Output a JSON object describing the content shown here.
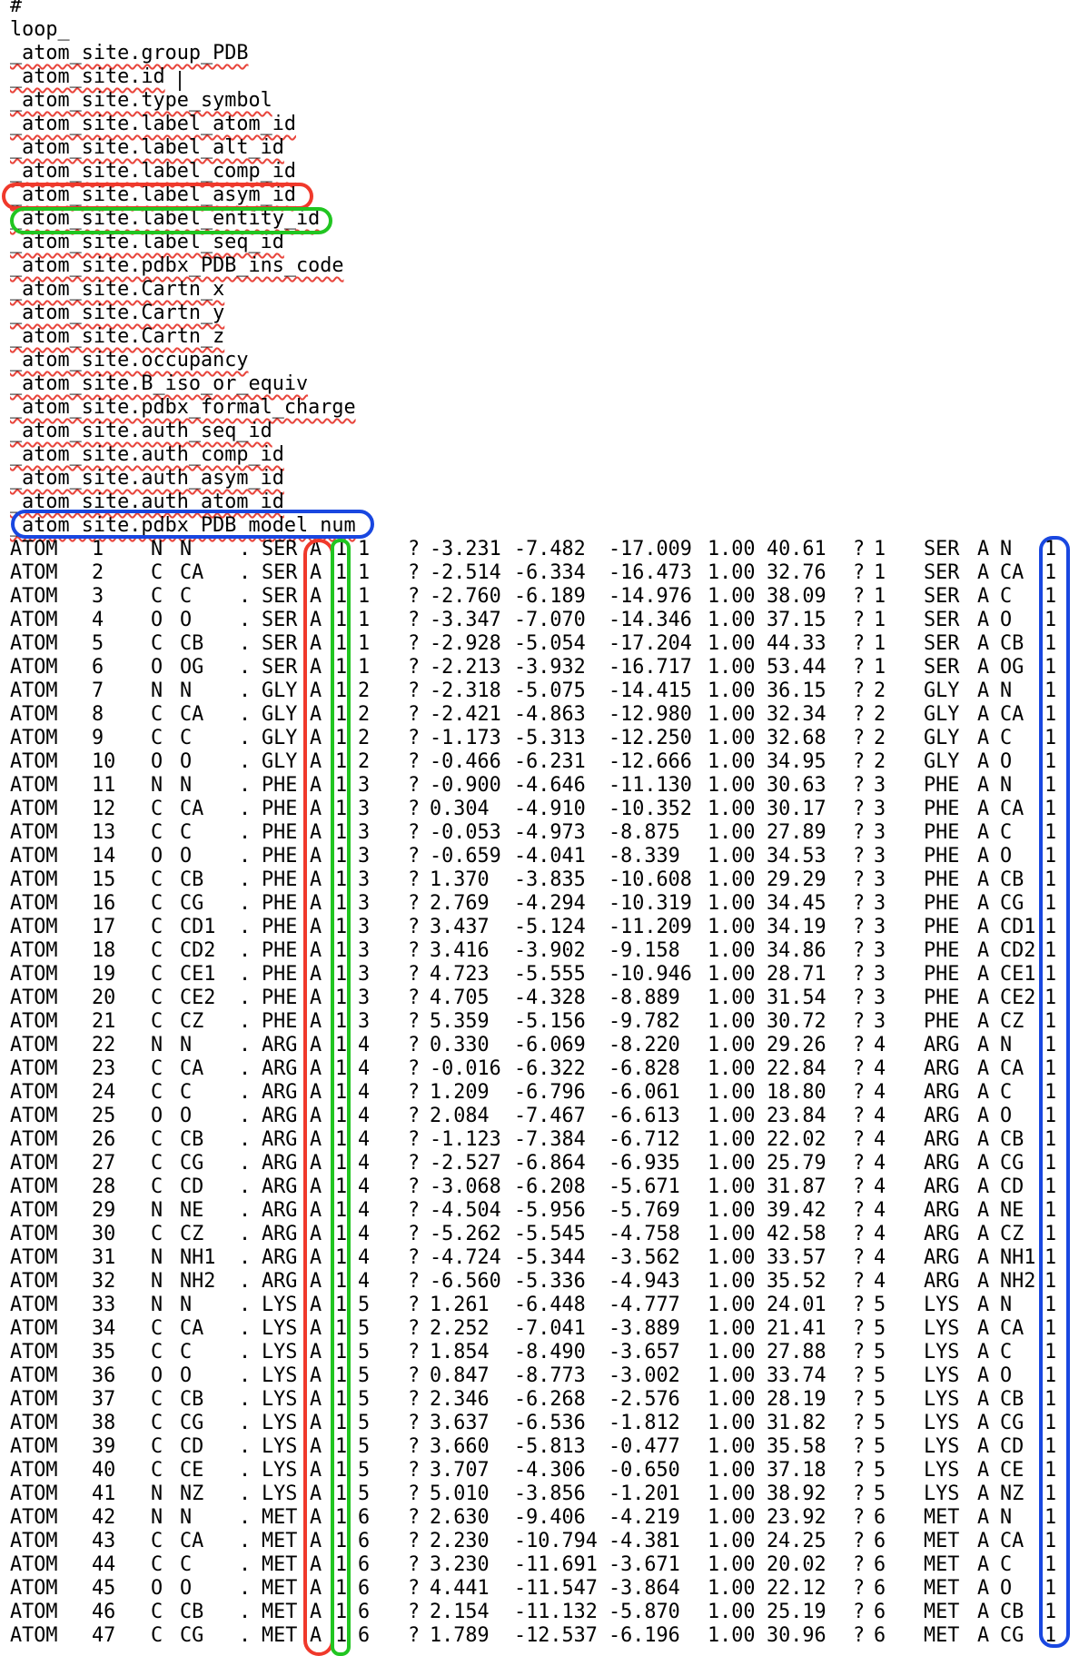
{
  "header_lines": [
    "#",
    "loop_"
  ],
  "tags": [
    "_atom_site.group_PDB",
    "_atom_site.id",
    "_atom_site.type_symbol",
    "_atom_site.label_atom_id",
    "_atom_site.label_alt_id",
    "_atom_site.label_comp_id",
    "_atom_site.label_asym_id",
    "_atom_site.label_entity_id",
    "_atom_site.label_seq_id",
    "_atom_site.pdbx_PDB_ins_code",
    "_atom_site.Cartn_x",
    "_atom_site.Cartn_y",
    "_atom_site.Cartn_z",
    "_atom_site.occupancy",
    "_atom_site.B_iso_or_equiv",
    "_atom_site.pdbx_formal_charge",
    "_atom_site.auth_seq_id",
    "_atom_site.auth_comp_id",
    "_atom_site.auth_asym_id",
    "_atom_site.auth_atom_id",
    "_atom_site.pdbx_PDB_model_num"
  ],
  "highlights": {
    "label_asym_id": "#f0392b",
    "label_entity_id": "#21c521",
    "pdbx_PDB_model_num": "#1947e0"
  },
  "rows": [
    [
      "ATOM",
      "1",
      "N",
      "N",
      ".",
      "SER",
      "A",
      "1",
      "1",
      "?",
      "-3.231",
      "-7.482",
      "-17.009",
      "1.00",
      "40.61",
      "?",
      "1",
      "SER",
      "A",
      "N",
      "1"
    ],
    [
      "ATOM",
      "2",
      "C",
      "CA",
      ".",
      "SER",
      "A",
      "1",
      "1",
      "?",
      "-2.514",
      "-6.334",
      "-16.473",
      "1.00",
      "32.76",
      "?",
      "1",
      "SER",
      "A",
      "CA",
      "1"
    ],
    [
      "ATOM",
      "3",
      "C",
      "C",
      ".",
      "SER",
      "A",
      "1",
      "1",
      "?",
      "-2.760",
      "-6.189",
      "-14.976",
      "1.00",
      "38.09",
      "?",
      "1",
      "SER",
      "A",
      "C",
      "1"
    ],
    [
      "ATOM",
      "4",
      "O",
      "O",
      ".",
      "SER",
      "A",
      "1",
      "1",
      "?",
      "-3.347",
      "-7.070",
      "-14.346",
      "1.00",
      "37.15",
      "?",
      "1",
      "SER",
      "A",
      "O",
      "1"
    ],
    [
      "ATOM",
      "5",
      "C",
      "CB",
      ".",
      "SER",
      "A",
      "1",
      "1",
      "?",
      "-2.928",
      "-5.054",
      "-17.204",
      "1.00",
      "44.33",
      "?",
      "1",
      "SER",
      "A",
      "CB",
      "1"
    ],
    [
      "ATOM",
      "6",
      "O",
      "OG",
      ".",
      "SER",
      "A",
      "1",
      "1",
      "?",
      "-2.213",
      "-3.932",
      "-16.717",
      "1.00",
      "53.44",
      "?",
      "1",
      "SER",
      "A",
      "OG",
      "1"
    ],
    [
      "ATOM",
      "7",
      "N",
      "N",
      ".",
      "GLY",
      "A",
      "1",
      "2",
      "?",
      "-2.318",
      "-5.075",
      "-14.415",
      "1.00",
      "36.15",
      "?",
      "2",
      "GLY",
      "A",
      "N",
      "1"
    ],
    [
      "ATOM",
      "8",
      "C",
      "CA",
      ".",
      "GLY",
      "A",
      "1",
      "2",
      "?",
      "-2.421",
      "-4.863",
      "-12.980",
      "1.00",
      "32.34",
      "?",
      "2",
      "GLY",
      "A",
      "CA",
      "1"
    ],
    [
      "ATOM",
      "9",
      "C",
      "C",
      ".",
      "GLY",
      "A",
      "1",
      "2",
      "?",
      "-1.173",
      "-5.313",
      "-12.250",
      "1.00",
      "32.68",
      "?",
      "2",
      "GLY",
      "A",
      "C",
      "1"
    ],
    [
      "ATOM",
      "10",
      "O",
      "O",
      ".",
      "GLY",
      "A",
      "1",
      "2",
      "?",
      "-0.466",
      "-6.231",
      "-12.666",
      "1.00",
      "34.95",
      "?",
      "2",
      "GLY",
      "A",
      "O",
      "1"
    ],
    [
      "ATOM",
      "11",
      "N",
      "N",
      ".",
      "PHE",
      "A",
      "1",
      "3",
      "?",
      "-0.900",
      "-4.646",
      "-11.130",
      "1.00",
      "30.63",
      "?",
      "3",
      "PHE",
      "A",
      "N",
      "1"
    ],
    [
      "ATOM",
      "12",
      "C",
      "CA",
      ".",
      "PHE",
      "A",
      "1",
      "3",
      "?",
      "0.304",
      "-4.910",
      "-10.352",
      "1.00",
      "30.17",
      "?",
      "3",
      "PHE",
      "A",
      "CA",
      "1"
    ],
    [
      "ATOM",
      "13",
      "C",
      "C",
      ".",
      "PHE",
      "A",
      "1",
      "3",
      "?",
      "-0.053",
      "-4.973",
      "-8.875",
      "1.00",
      "27.89",
      "?",
      "3",
      "PHE",
      "A",
      "C",
      "1"
    ],
    [
      "ATOM",
      "14",
      "O",
      "O",
      ".",
      "PHE",
      "A",
      "1",
      "3",
      "?",
      "-0.659",
      "-4.041",
      "-8.339",
      "1.00",
      "34.53",
      "?",
      "3",
      "PHE",
      "A",
      "O",
      "1"
    ],
    [
      "ATOM",
      "15",
      "C",
      "CB",
      ".",
      "PHE",
      "A",
      "1",
      "3",
      "?",
      "1.370",
      "-3.835",
      "-10.608",
      "1.00",
      "29.29",
      "?",
      "3",
      "PHE",
      "A",
      "CB",
      "1"
    ],
    [
      "ATOM",
      "16",
      "C",
      "CG",
      ".",
      "PHE",
      "A",
      "1",
      "3",
      "?",
      "2.769",
      "-4.294",
      "-10.319",
      "1.00",
      "34.45",
      "?",
      "3",
      "PHE",
      "A",
      "CG",
      "1"
    ],
    [
      "ATOM",
      "17",
      "C",
      "CD1",
      ".",
      "PHE",
      "A",
      "1",
      "3",
      "?",
      "3.437",
      "-5.124",
      "-11.209",
      "1.00",
      "34.19",
      "?",
      "3",
      "PHE",
      "A",
      "CD1",
      "1"
    ],
    [
      "ATOM",
      "18",
      "C",
      "CD2",
      ".",
      "PHE",
      "A",
      "1",
      "3",
      "?",
      "3.416",
      "-3.902",
      "-9.158",
      "1.00",
      "34.86",
      "?",
      "3",
      "PHE",
      "A",
      "CD2",
      "1"
    ],
    [
      "ATOM",
      "19",
      "C",
      "CE1",
      ".",
      "PHE",
      "A",
      "1",
      "3",
      "?",
      "4.723",
      "-5.555",
      "-10.946",
      "1.00",
      "28.71",
      "?",
      "3",
      "PHE",
      "A",
      "CE1",
      "1"
    ],
    [
      "ATOM",
      "20",
      "C",
      "CE2",
      ".",
      "PHE",
      "A",
      "1",
      "3",
      "?",
      "4.705",
      "-4.328",
      "-8.889",
      "1.00",
      "31.54",
      "?",
      "3",
      "PHE",
      "A",
      "CE2",
      "1"
    ],
    [
      "ATOM",
      "21",
      "C",
      "CZ",
      ".",
      "PHE",
      "A",
      "1",
      "3",
      "?",
      "5.359",
      "-5.156",
      "-9.782",
      "1.00",
      "30.72",
      "?",
      "3",
      "PHE",
      "A",
      "CZ",
      "1"
    ],
    [
      "ATOM",
      "22",
      "N",
      "N",
      ".",
      "ARG",
      "A",
      "1",
      "4",
      "?",
      "0.330",
      "-6.069",
      "-8.220",
      "1.00",
      "29.26",
      "?",
      "4",
      "ARG",
      "A",
      "N",
      "1"
    ],
    [
      "ATOM",
      "23",
      "C",
      "CA",
      ".",
      "ARG",
      "A",
      "1",
      "4",
      "?",
      "-0.016",
      "-6.322",
      "-6.828",
      "1.00",
      "22.84",
      "?",
      "4",
      "ARG",
      "A",
      "CA",
      "1"
    ],
    [
      "ATOM",
      "24",
      "C",
      "C",
      ".",
      "ARG",
      "A",
      "1",
      "4",
      "?",
      "1.209",
      "-6.796",
      "-6.061",
      "1.00",
      "18.80",
      "?",
      "4",
      "ARG",
      "A",
      "C",
      "1"
    ],
    [
      "ATOM",
      "25",
      "O",
      "O",
      ".",
      "ARG",
      "A",
      "1",
      "4",
      "?",
      "2.084",
      "-7.467",
      "-6.613",
      "1.00",
      "23.84",
      "?",
      "4",
      "ARG",
      "A",
      "O",
      "1"
    ],
    [
      "ATOM",
      "26",
      "C",
      "CB",
      ".",
      "ARG",
      "A",
      "1",
      "4",
      "?",
      "-1.123",
      "-7.384",
      "-6.712",
      "1.00",
      "22.02",
      "?",
      "4",
      "ARG",
      "A",
      "CB",
      "1"
    ],
    [
      "ATOM",
      "27",
      "C",
      "CG",
      ".",
      "ARG",
      "A",
      "1",
      "4",
      "?",
      "-2.527",
      "-6.864",
      "-6.935",
      "1.00",
      "25.79",
      "?",
      "4",
      "ARG",
      "A",
      "CG",
      "1"
    ],
    [
      "ATOM",
      "28",
      "C",
      "CD",
      ".",
      "ARG",
      "A",
      "1",
      "4",
      "?",
      "-3.068",
      "-6.208",
      "-5.671",
      "1.00",
      "31.87",
      "?",
      "4",
      "ARG",
      "A",
      "CD",
      "1"
    ],
    [
      "ATOM",
      "29",
      "N",
      "NE",
      ".",
      "ARG",
      "A",
      "1",
      "4",
      "?",
      "-4.504",
      "-5.956",
      "-5.769",
      "1.00",
      "39.42",
      "?",
      "4",
      "ARG",
      "A",
      "NE",
      "1"
    ],
    [
      "ATOM",
      "30",
      "C",
      "CZ",
      ".",
      "ARG",
      "A",
      "1",
      "4",
      "?",
      "-5.262",
      "-5.545",
      "-4.758",
      "1.00",
      "42.58",
      "?",
      "4",
      "ARG",
      "A",
      "CZ",
      "1"
    ],
    [
      "ATOM",
      "31",
      "N",
      "NH1",
      ".",
      "ARG",
      "A",
      "1",
      "4",
      "?",
      "-4.724",
      "-5.344",
      "-3.562",
      "1.00",
      "33.57",
      "?",
      "4",
      "ARG",
      "A",
      "NH1",
      "1"
    ],
    [
      "ATOM",
      "32",
      "N",
      "NH2",
      ".",
      "ARG",
      "A",
      "1",
      "4",
      "?",
      "-6.560",
      "-5.336",
      "-4.943",
      "1.00",
      "35.52",
      "?",
      "4",
      "ARG",
      "A",
      "NH2",
      "1"
    ],
    [
      "ATOM",
      "33",
      "N",
      "N",
      ".",
      "LYS",
      "A",
      "1",
      "5",
      "?",
      "1.261",
      "-6.448",
      "-4.777",
      "1.00",
      "24.01",
      "?",
      "5",
      "LYS",
      "A",
      "N",
      "1"
    ],
    [
      "ATOM",
      "34",
      "C",
      "CA",
      ".",
      "LYS",
      "A",
      "1",
      "5",
      "?",
      "2.252",
      "-7.041",
      "-3.889",
      "1.00",
      "21.41",
      "?",
      "5",
      "LYS",
      "A",
      "CA",
      "1"
    ],
    [
      "ATOM",
      "35",
      "C",
      "C",
      ".",
      "LYS",
      "A",
      "1",
      "5",
      "?",
      "1.854",
      "-8.490",
      "-3.657",
      "1.00",
      "27.88",
      "?",
      "5",
      "LYS",
      "A",
      "C",
      "1"
    ],
    [
      "ATOM",
      "36",
      "O",
      "O",
      ".",
      "LYS",
      "A",
      "1",
      "5",
      "?",
      "0.847",
      "-8.773",
      "-3.002",
      "1.00",
      "33.74",
      "?",
      "5",
      "LYS",
      "A",
      "O",
      "1"
    ],
    [
      "ATOM",
      "37",
      "C",
      "CB",
      ".",
      "LYS",
      "A",
      "1",
      "5",
      "?",
      "2.346",
      "-6.268",
      "-2.576",
      "1.00",
      "28.19",
      "?",
      "5",
      "LYS",
      "A",
      "CB",
      "1"
    ],
    [
      "ATOM",
      "38",
      "C",
      "CG",
      ".",
      "LYS",
      "A",
      "1",
      "5",
      "?",
      "3.637",
      "-6.536",
      "-1.812",
      "1.00",
      "31.82",
      "?",
      "5",
      "LYS",
      "A",
      "CG",
      "1"
    ],
    [
      "ATOM",
      "39",
      "C",
      "CD",
      ".",
      "LYS",
      "A",
      "1",
      "5",
      "?",
      "3.660",
      "-5.813",
      "-0.477",
      "1.00",
      "35.58",
      "?",
      "5",
      "LYS",
      "A",
      "CD",
      "1"
    ],
    [
      "ATOM",
      "40",
      "C",
      "CE",
      ".",
      "LYS",
      "A",
      "1",
      "5",
      "?",
      "3.707",
      "-4.306",
      "-0.650",
      "1.00",
      "37.18",
      "?",
      "5",
      "LYS",
      "A",
      "CE",
      "1"
    ],
    [
      "ATOM",
      "41",
      "N",
      "NZ",
      ".",
      "LYS",
      "A",
      "1",
      "5",
      "?",
      "5.010",
      "-3.856",
      "-1.201",
      "1.00",
      "38.92",
      "?",
      "5",
      "LYS",
      "A",
      "NZ",
      "1"
    ],
    [
      "ATOM",
      "42",
      "N",
      "N",
      ".",
      "MET",
      "A",
      "1",
      "6",
      "?",
      "2.630",
      "-9.406",
      "-4.219",
      "1.00",
      "23.92",
      "?",
      "6",
      "MET",
      "A",
      "N",
      "1"
    ],
    [
      "ATOM",
      "43",
      "C",
      "CA",
      ".",
      "MET",
      "A",
      "1",
      "6",
      "?",
      "2.230",
      "-10.794",
      "-4.381",
      "1.00",
      "24.25",
      "?",
      "6",
      "MET",
      "A",
      "CA",
      "1"
    ],
    [
      "ATOM",
      "44",
      "C",
      "C",
      ".",
      "MET",
      "A",
      "1",
      "6",
      "?",
      "3.230",
      "-11.691",
      "-3.671",
      "1.00",
      "20.02",
      "?",
      "6",
      "MET",
      "A",
      "C",
      "1"
    ],
    [
      "ATOM",
      "45",
      "O",
      "O",
      ".",
      "MET",
      "A",
      "1",
      "6",
      "?",
      "4.441",
      "-11.547",
      "-3.864",
      "1.00",
      "22.12",
      "?",
      "6",
      "MET",
      "A",
      "O",
      "1"
    ],
    [
      "ATOM",
      "46",
      "C",
      "CB",
      ".",
      "MET",
      "A",
      "1",
      "6",
      "?",
      "2.154",
      "-11.132",
      "-5.870",
      "1.00",
      "25.19",
      "?",
      "6",
      "MET",
      "A",
      "CB",
      "1"
    ],
    [
      "ATOM",
      "47",
      "C",
      "CG",
      ".",
      "MET",
      "A",
      "1",
      "6",
      "?",
      "1.789",
      "-12.537",
      "-6.196",
      "1.00",
      "30.96",
      "?",
      "6",
      "MET",
      "A",
      "CG",
      "1"
    ]
  ]
}
